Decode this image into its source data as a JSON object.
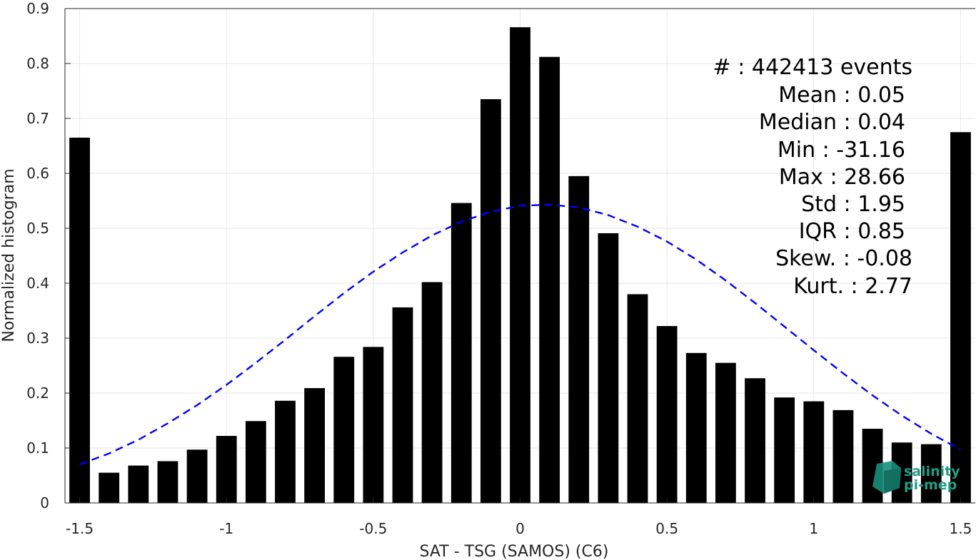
{
  "chart_data": {
    "type": "bar",
    "title": "",
    "xlabel": "SAT - TSG (SAMOS) (C6)",
    "ylabel": "Normalized histogram",
    "xlim": [
      -1.55,
      1.55
    ],
    "ylim": [
      0,
      0.9
    ],
    "grid": true,
    "x_ticks": [
      -1.5,
      -1,
      -0.5,
      0,
      0.5,
      1,
      1.5
    ],
    "x_tick_labels": [
      "-1.5",
      "-1",
      "-0.5",
      "0",
      "0.5",
      "1",
      "1.5"
    ],
    "y_ticks": [
      0,
      0.1,
      0.2,
      0.3,
      0.4,
      0.5,
      0.6,
      0.7,
      0.8,
      0.9
    ],
    "y_tick_labels": [
      "0",
      "0.1",
      "0.2",
      "0.3",
      "0.4",
      "0.5",
      "0.6",
      "0.7",
      "0.8",
      "0.9"
    ],
    "bar_color": "#000000",
    "bar_width": 0.07,
    "bins": [
      -1.5,
      -1.4,
      -1.3,
      -1.2,
      -1.1,
      -1.0,
      -0.9,
      -0.8,
      -0.7,
      -0.6,
      -0.5,
      -0.4,
      -0.3,
      -0.2,
      -0.1,
      0.0,
      0.1,
      0.2,
      0.3,
      0.4,
      0.5,
      0.6,
      0.7,
      0.8,
      0.9,
      1.0,
      1.1,
      1.2,
      1.3,
      1.4,
      1.5
    ],
    "values": [
      0.665,
      0.055,
      0.068,
      0.076,
      0.097,
      0.122,
      0.149,
      0.186,
      0.209,
      0.266,
      0.284,
      0.356,
      0.402,
      0.546,
      0.735,
      0.866,
      0.812,
      0.595,
      0.491,
      0.38,
      0.322,
      0.273,
      0.255,
      0.227,
      0.192,
      0.185,
      0.169,
      0.135,
      0.11,
      0.107,
      0.675
    ],
    "fit_curve": {
      "name": "Gaussian fit",
      "color": "#0000ff",
      "style": "dashed",
      "x": [
        -1.5,
        -1.4,
        -1.3,
        -1.2,
        -1.1,
        -1.0,
        -0.9,
        -0.8,
        -0.7,
        -0.6,
        -0.5,
        -0.4,
        -0.3,
        -0.2,
        -0.1,
        0.0,
        0.1,
        0.2,
        0.3,
        0.4,
        0.5,
        0.6,
        0.7,
        0.8,
        0.9,
        1.0,
        1.1,
        1.2,
        1.3,
        1.4,
        1.5
      ],
      "y": [
        0.07,
        0.09,
        0.115,
        0.145,
        0.178,
        0.215,
        0.255,
        0.297,
        0.34,
        0.382,
        0.421,
        0.456,
        0.487,
        0.512,
        0.53,
        0.541,
        0.543,
        0.538,
        0.524,
        0.503,
        0.476,
        0.443,
        0.405,
        0.364,
        0.321,
        0.278,
        0.236,
        0.196,
        0.159,
        0.126,
        0.097
      ]
    },
    "annotations": [
      "#  : 442413 events",
      "Mean : 0.05",
      "Median : 0.04",
      "Min : -31.16",
      "Max : 28.66",
      "Std : 1.95",
      "IQR : 0.85",
      "Skew. : -0.08",
      "Kurt. : 2.77"
    ]
  },
  "logo": {
    "line1": "salinity",
    "line2": "pi-mep",
    "color": "#1f9e86"
  }
}
